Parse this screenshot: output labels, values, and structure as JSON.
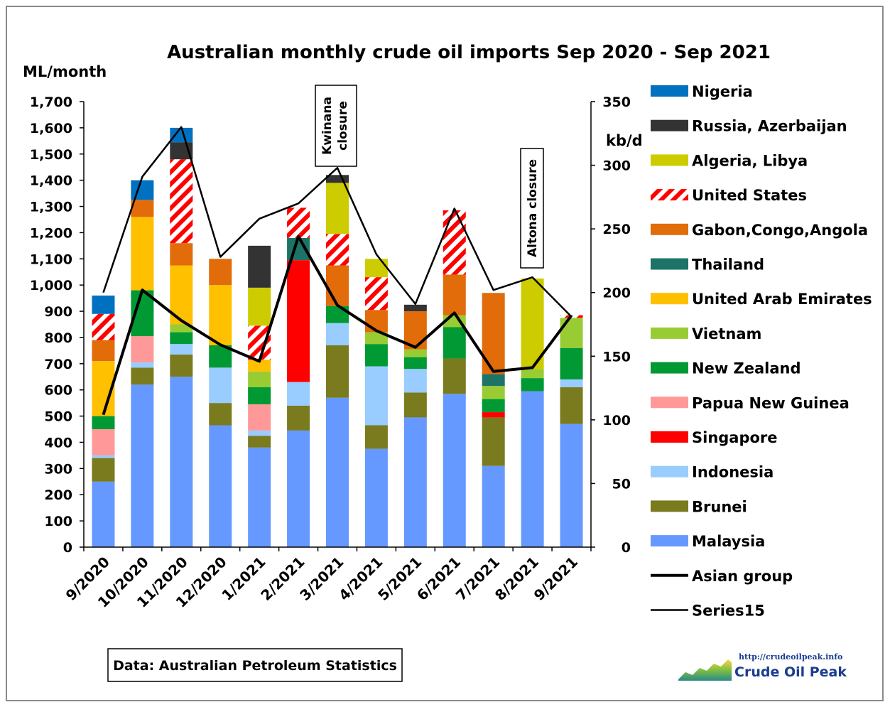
{
  "chart_data": {
    "type": "bar",
    "stacked": true,
    "title": "Australian monthly  crude oil imports Sep 2020 - Sep 2021",
    "ylabel": "ML/month",
    "y2label": "kb/d",
    "ylim": [
      0,
      1700
    ],
    "y2lim": [
      0,
      350
    ],
    "yticks": [
      "0",
      "100",
      "200",
      "300",
      "400",
      "500",
      "600",
      "700",
      "800",
      "900",
      "1,000",
      "1,100",
      "1,200",
      "1,300",
      "1,400",
      "1,500",
      "1,600",
      "1,700"
    ],
    "y2ticks": [
      "0",
      "50",
      "100",
      "150",
      "200",
      "250",
      "300",
      "350"
    ],
    "grid": false,
    "legend_position": "right",
    "categories": [
      "9/2020",
      "10/2020",
      "11/2020",
      "12/2020",
      "1/2021",
      "2/2021",
      "3/2021",
      "4/2021",
      "5/2021",
      "6/2021",
      "7/2021",
      "8/2021",
      "9/2021"
    ],
    "series": [
      {
        "name": "Malaysia",
        "color": "#6699ff",
        "pattern": "solid",
        "values": [
          250,
          620,
          650,
          465,
          380,
          445,
          570,
          375,
          495,
          585,
          310,
          595,
          470
        ]
      },
      {
        "name": "Brunei",
        "color": "#7a7a1e",
        "pattern": "solid",
        "values": [
          90,
          65,
          85,
          85,
          45,
          95,
          200,
          90,
          95,
          135,
          185,
          0,
          140
        ]
      },
      {
        "name": "Indonesia",
        "color": "#99ccff",
        "pattern": "solid",
        "values": [
          10,
          20,
          40,
          135,
          20,
          90,
          85,
          225,
          90,
          0,
          0,
          0,
          30
        ]
      },
      {
        "name": "Singapore",
        "color": "#ff0000",
        "pattern": "solid",
        "values": [
          0,
          0,
          0,
          0,
          0,
          465,
          0,
          0,
          0,
          0,
          20,
          0,
          0
        ]
      },
      {
        "name": "Papua New Guinea",
        "color": "#ff9999",
        "pattern": "solid",
        "values": [
          100,
          100,
          0,
          0,
          100,
          0,
          0,
          0,
          0,
          0,
          0,
          0,
          0
        ]
      },
      {
        "name": "New Zealand",
        "color": "#009933",
        "pattern": "solid",
        "values": [
          50,
          175,
          45,
          85,
          65,
          0,
          65,
          85,
          45,
          120,
          50,
          50,
          120
        ]
      },
      {
        "name": "Vietnam",
        "color": "#99cc33",
        "pattern": "solid",
        "values": [
          0,
          0,
          30,
          0,
          60,
          0,
          0,
          45,
          30,
          45,
          50,
          35,
          115
        ]
      },
      {
        "name": "United Arab Emirates",
        "color": "#ffc000",
        "pattern": "solid",
        "values": [
          210,
          280,
          225,
          230,
          45,
          0,
          0,
          0,
          0,
          0,
          0,
          0,
          0
        ]
      },
      {
        "name": "Thailand",
        "color": "#1d7366",
        "pattern": "solid",
        "values": [
          0,
          0,
          0,
          0,
          0,
          85,
          0,
          0,
          0,
          0,
          45,
          0,
          0
        ]
      },
      {
        "name": "Gabon,Congo,Angola",
        "color": "#e26b0a",
        "pattern": "solid",
        "values": [
          80,
          65,
          85,
          100,
          0,
          0,
          155,
          85,
          145,
          155,
          310,
          0,
          0
        ]
      },
      {
        "name": "United States",
        "color": "#ff0000",
        "pattern": "hatch",
        "values": [
          100,
          0,
          320,
          0,
          130,
          115,
          120,
          125,
          0,
          245,
          0,
          0,
          10
        ]
      },
      {
        "name": "Algeria, Libya",
        "color": "#cccc00",
        "pattern": "solid",
        "values": [
          0,
          0,
          0,
          0,
          145,
          0,
          195,
          70,
          0,
          0,
          0,
          345,
          0
        ]
      },
      {
        "name": "Russia, Azerbaijan",
        "color": "#333333",
        "pattern": "solid",
        "values": [
          0,
          0,
          65,
          0,
          160,
          0,
          30,
          0,
          25,
          0,
          0,
          0,
          0
        ]
      },
      {
        "name": "Nigeria",
        "color": "#0070c0",
        "pattern": "solid",
        "values": [
          70,
          75,
          55,
          0,
          0,
          0,
          0,
          0,
          0,
          0,
          0,
          0,
          0
        ]
      }
    ],
    "lines": [
      {
        "name": "Asian group",
        "axis": "y2",
        "color": "#000000",
        "width": 4,
        "values": [
          104,
          202,
          178,
          159,
          146,
          244,
          190,
          170,
          157,
          184,
          138,
          141,
          182
        ]
      },
      {
        "name": "Series15",
        "axis": "y2",
        "color": "#000000",
        "width": 2.5,
        "values": [
          200,
          291,
          330,
          228,
          258,
          270,
          298,
          230,
          191,
          266,
          202,
          212,
          181
        ]
      }
    ],
    "annotations": [
      "Kwinana closure",
      "Altona closure"
    ],
    "source": "Data: Australian Petroleum Statistics",
    "logo": {
      "url": "http://crudeoilpeak.info",
      "name": "Crude Oil Peak"
    }
  }
}
